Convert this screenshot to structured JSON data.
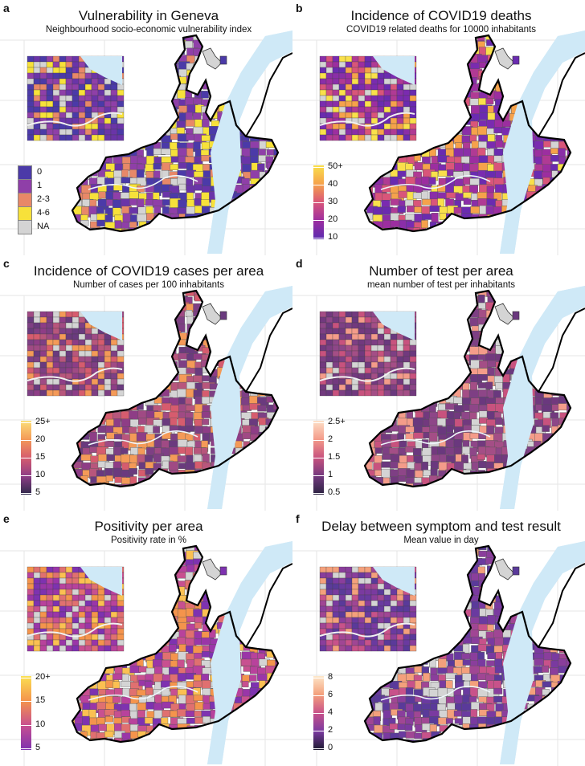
{
  "panels": [
    {
      "id": "a",
      "title": "Vulnerability in Geneva",
      "subtitle": "Neighbourhood socio-economic vulnerability index",
      "legend": {
        "type": "discrete",
        "items": [
          {
            "label": "0",
            "color": "#4b3aa8"
          },
          {
            "label": "1",
            "color": "#8f3fa8"
          },
          {
            "label": "2-3",
            "color": "#e88868"
          },
          {
            "label": "4-6",
            "color": "#f7e13a"
          },
          {
            "label": "NA",
            "color": "#d4d4d4"
          }
        ]
      },
      "palette": [
        "#4b3aa8",
        "#4b3aa8",
        "#6a34a8",
        "#8f3fa8",
        "#8f3fa8",
        "#e88868",
        "#f7e13a",
        "#d4d4d4"
      ]
    },
    {
      "id": "b",
      "title": "Incidence of COVID19 deaths",
      "subtitle": "COVID19 related deaths for 10000 inhabitants",
      "legend": {
        "type": "continuous",
        "labels": [
          "50+",
          "40",
          "30",
          "20",
          "10"
        ],
        "colors": [
          "#f9e04b",
          "#f6a24b",
          "#d9557a",
          "#9c2ea0",
          "#5a2bb0"
        ]
      },
      "palette": [
        "#6a2bb0",
        "#7a2bb0",
        "#8a2ea8",
        "#9c2ea0",
        "#b03a94",
        "#d9557a",
        "#f6a24b",
        "#f9e04b",
        "#d4d4d4"
      ]
    },
    {
      "id": "c",
      "title": "Incidence of COVID19 cases per area",
      "subtitle": "Number of cases per 100 inhabitants",
      "legend": {
        "type": "continuous",
        "labels": [
          "25+",
          "20",
          "15",
          "10",
          "5"
        ],
        "colors": [
          "#fbe07a",
          "#f49a58",
          "#d65c6e",
          "#8e3d86",
          "#2e2a4a"
        ]
      },
      "palette": [
        "#6a3a7e",
        "#7e3f84",
        "#8e3d86",
        "#a04a84",
        "#b8567c",
        "#d65c6e",
        "#f49a58",
        "#d4d4d4"
      ]
    },
    {
      "id": "d",
      "title": "Number of test per area",
      "subtitle": "mean number of test per inhabitants",
      "legend": {
        "type": "continuous",
        "labels": [
          "2.5+",
          "2",
          "1.5",
          "1",
          "0.5"
        ],
        "colors": [
          "#fde0c8",
          "#f49c8a",
          "#c8527e",
          "#72397e",
          "#2a2340"
        ]
      },
      "palette": [
        "#6a387e",
        "#72397e",
        "#7e3f84",
        "#8e4688",
        "#a44e86",
        "#c8527e",
        "#f49c8a",
        "#d4d4d4"
      ]
    },
    {
      "id": "e",
      "title": "Positivity per area",
      "subtitle": "Positivity rate in %",
      "legend": {
        "type": "continuous",
        "labels": [
          "20+",
          "15",
          "10",
          "5"
        ],
        "colors": [
          "#fbe052",
          "#f4944c",
          "#c85090",
          "#7e32b0"
        ]
      },
      "palette": [
        "#7e32b0",
        "#9a36a8",
        "#b8429c",
        "#c85090",
        "#e07070",
        "#f4944c",
        "#fbc052",
        "#d4d4d4"
      ]
    },
    {
      "id": "f",
      "title": "Delay between symptom and test result",
      "subtitle": "Mean value in day",
      "legend": {
        "type": "continuous",
        "labels": [
          "8",
          "6",
          "4",
          "2",
          "0"
        ],
        "colors": [
          "#fde6c8",
          "#f4a07c",
          "#c8528a",
          "#7a3aa0",
          "#1c1a30"
        ]
      },
      "palette": [
        "#5a3a9a",
        "#6a3aa0",
        "#7a3aa0",
        "#8a3e9c",
        "#a04694",
        "#c8528a",
        "#f4a07c",
        "#d4d4d4"
      ]
    }
  ],
  "colors": {
    "lake": "#cfe9f7",
    "border": "#000000",
    "grid": "#e6e6e6"
  }
}
